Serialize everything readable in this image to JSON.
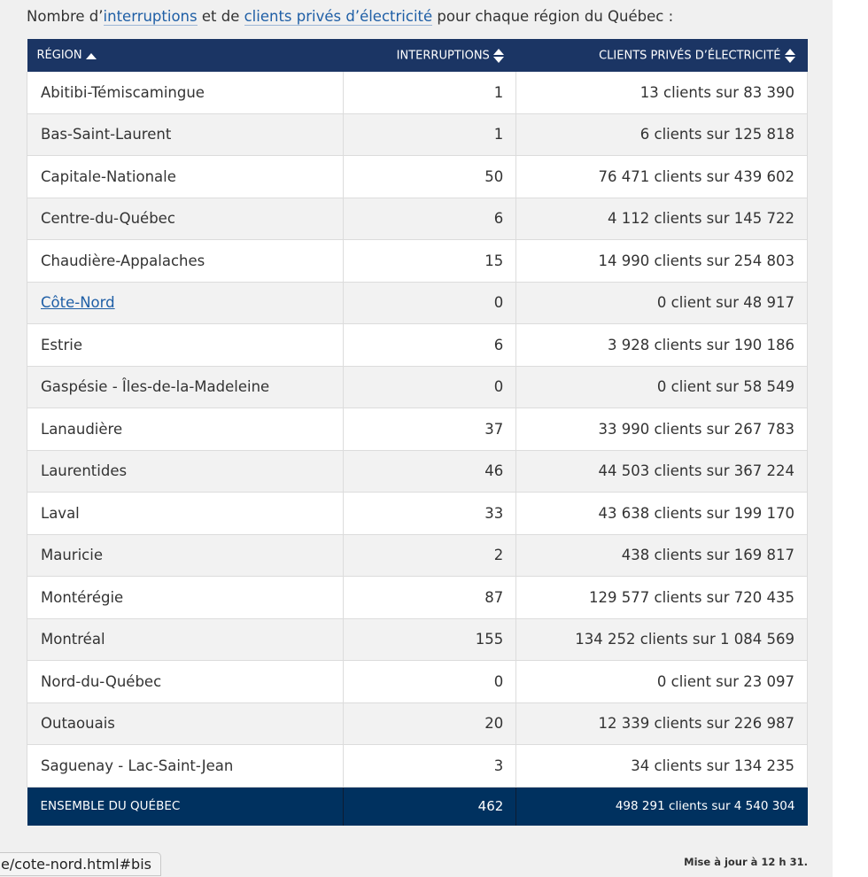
{
  "intro": {
    "prefix": "Nombre d’",
    "link1": "interruptions",
    "middle": " et de ",
    "link2": "clients privés d’électricité",
    "suffix": " pour chaque région du Québec :"
  },
  "table": {
    "headers": [
      "RÉGION",
      "INTERRUPTIONS",
      "CLIENTS PRIVÉS D’ÉLECTRICITÉ"
    ],
    "sort": {
      "column": "RÉGION",
      "direction": "ascending"
    },
    "rows": [
      {
        "region": "Abitibi-Témiscamingue",
        "interruptions": "1",
        "clients": "13 clients sur 83 390"
      },
      {
        "region": "Bas-Saint-Laurent",
        "interruptions": "1",
        "clients": "6 clients sur 125 818"
      },
      {
        "region": "Capitale-Nationale",
        "interruptions": "50",
        "clients": "76 471 clients sur 439 602"
      },
      {
        "region": "Centre-du-Québec",
        "interruptions": "6",
        "clients": "4 112 clients sur 145 722"
      },
      {
        "region": "Chaudière-Appalaches",
        "interruptions": "15",
        "clients": "14 990 clients sur 254 803"
      },
      {
        "region": "Côte-Nord",
        "interruptions": "0",
        "clients": "0 client sur 48 917",
        "link": true
      },
      {
        "region": "Estrie",
        "interruptions": "6",
        "clients": "3 928 clients sur 190 186"
      },
      {
        "region": "Gaspésie - Îles-de-la-Madeleine",
        "interruptions": "0",
        "clients": "0 client sur 58 549"
      },
      {
        "region": "Lanaudière",
        "interruptions": "37",
        "clients": "33 990 clients sur 267 783"
      },
      {
        "region": "Laurentides",
        "interruptions": "46",
        "clients": "44 503 clients sur 367 224"
      },
      {
        "region": "Laval",
        "interruptions": "33",
        "clients": "43 638 clients sur 199 170"
      },
      {
        "region": "Mauricie",
        "interruptions": "2",
        "clients": "438 clients sur 169 817"
      },
      {
        "region": "Montérégie",
        "interruptions": "87",
        "clients": "129 577 clients sur 720 435"
      },
      {
        "region": "Montréal",
        "interruptions": "155",
        "clients": "134 252 clients sur 1 084 569"
      },
      {
        "region": "Nord-du-Québec",
        "interruptions": "0",
        "clients": "0 client sur 23 097"
      },
      {
        "region": "Outaouais",
        "interruptions": "20",
        "clients": "12 339 clients sur 226 987"
      },
      {
        "region": "Saguenay - Lac-Saint-Jean",
        "interruptions": "3",
        "clients": "34 clients sur 134 235"
      }
    ],
    "total": {
      "region": "ENSEMBLE DU QUÉBEC",
      "interruptions": "462",
      "clients": "498 291 clients sur 4 540 304"
    }
  },
  "status_url": "e/cote-nord.html#bis",
  "updated": "Mise à jour à 12 h 31.",
  "colors": {
    "header": "#1b3564",
    "total": "#00315f",
    "link": "#1f5fa6"
  }
}
